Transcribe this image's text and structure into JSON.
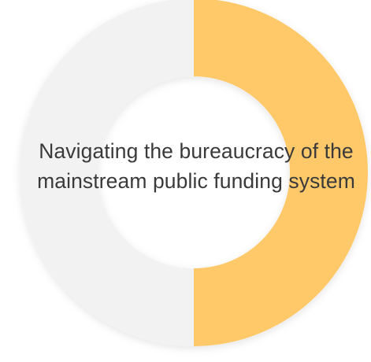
{
  "chart_data": {
    "type": "pie",
    "categories": [
      "",
      ""
    ],
    "values": [
      50,
      50
    ],
    "colors": [
      "#FFC96B",
      "#F2F2F2"
    ]
  },
  "overlay_text": {
    "line1": "Navigating the bureaucracy of the",
    "line2": "mainstream public funding system"
  }
}
